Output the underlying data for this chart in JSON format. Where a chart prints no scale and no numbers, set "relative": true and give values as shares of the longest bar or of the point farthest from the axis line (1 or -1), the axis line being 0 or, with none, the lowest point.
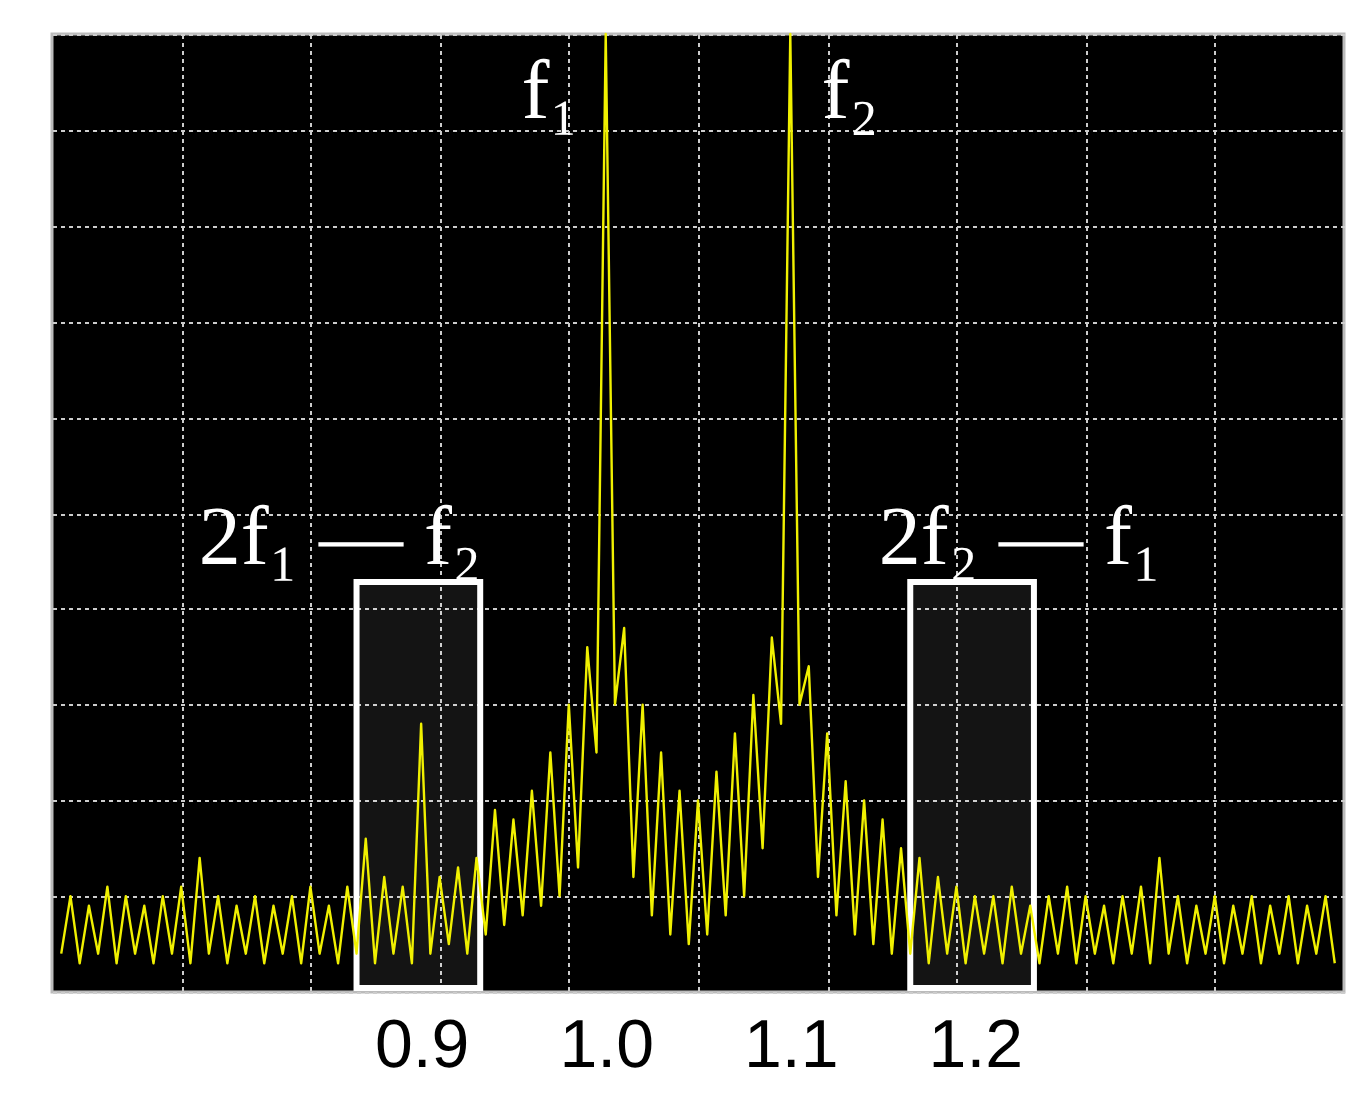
{
  "chart_data": {
    "type": "line",
    "relative": true,
    "grid": true,
    "tick_labels": "x",
    "xlim": [
      0.7,
      1.4
    ],
    "xticks": [
      {
        "value": 0.77,
        "label": null
      },
      {
        "value": 0.84,
        "label": null
      },
      {
        "value": 0.9,
        "label": "0.9"
      },
      {
        "value": 0.91,
        "label": null
      },
      {
        "value": 0.98,
        "label": null
      },
      {
        "value": 1.0,
        "label": "1.0"
      },
      {
        "value": 1.05,
        "label": null
      },
      {
        "value": 1.1,
        "label": "1.1"
      },
      {
        "value": 1.12,
        "label": null
      },
      {
        "value": 1.19,
        "label": null
      },
      {
        "value": 1.2,
        "label": "1.2"
      },
      {
        "value": 1.26,
        "label": null
      },
      {
        "value": 1.33,
        "label": null
      }
    ],
    "x": [
      0.705,
      0.71,
      0.715,
      0.72,
      0.725,
      0.73,
      0.735,
      0.74,
      0.745,
      0.75,
      0.755,
      0.76,
      0.765,
      0.77,
      0.775,
      0.78,
      0.785,
      0.79,
      0.795,
      0.8,
      0.805,
      0.81,
      0.815,
      0.82,
      0.825,
      0.83,
      0.835,
      0.84,
      0.845,
      0.85,
      0.855,
      0.86,
      0.865,
      0.87,
      0.875,
      0.88,
      0.885,
      0.89,
      0.895,
      0.9,
      0.905,
      0.91,
      0.915,
      0.92,
      0.925,
      0.93,
      0.935,
      0.94,
      0.945,
      0.95,
      0.955,
      0.96,
      0.965,
      0.97,
      0.975,
      0.98,
      0.985,
      0.99,
      0.995,
      1.0,
      1.005,
      1.01,
      1.015,
      1.02,
      1.025,
      1.03,
      1.035,
      1.04,
      1.045,
      1.05,
      1.055,
      1.06,
      1.065,
      1.07,
      1.075,
      1.08,
      1.085,
      1.09,
      1.095,
      1.1,
      1.105,
      1.11,
      1.115,
      1.12,
      1.125,
      1.13,
      1.135,
      1.14,
      1.145,
      1.15,
      1.155,
      1.16,
      1.165,
      1.17,
      1.175,
      1.18,
      1.185,
      1.19,
      1.195,
      1.2,
      1.205,
      1.21,
      1.215,
      1.22,
      1.225,
      1.23,
      1.235,
      1.24,
      1.245,
      1.25,
      1.255,
      1.26,
      1.265,
      1.27,
      1.275,
      1.28,
      1.285,
      1.29,
      1.295,
      1.3,
      1.305,
      1.31,
      1.315,
      1.32,
      1.325,
      1.33,
      1.335,
      1.34,
      1.345,
      1.35,
      1.355,
      1.36,
      1.365,
      1.37,
      1.375,
      1.38,
      1.385,
      1.39,
      1.395
    ],
    "series": [
      {
        "color": "#f0f000",
        "values": [
          0.04,
          0.1,
          0.03,
          0.09,
          0.04,
          0.11,
          0.03,
          0.1,
          0.04,
          0.09,
          0.03,
          0.1,
          0.04,
          0.11,
          0.03,
          0.14,
          0.04,
          0.1,
          0.03,
          0.09,
          0.04,
          0.1,
          0.03,
          0.09,
          0.04,
          0.1,
          0.03,
          0.11,
          0.04,
          0.09,
          0.03,
          0.11,
          0.04,
          0.16,
          0.03,
          0.12,
          0.04,
          0.11,
          0.03,
          0.28,
          0.04,
          0.12,
          0.05,
          0.13,
          0.04,
          0.14,
          0.06,
          0.19,
          0.07,
          0.18,
          0.08,
          0.21,
          0.09,
          0.25,
          0.1,
          0.3,
          0.13,
          0.36,
          0.25,
          1.0,
          0.3,
          0.38,
          0.12,
          0.3,
          0.08,
          0.25,
          0.06,
          0.21,
          0.05,
          0.2,
          0.06,
          0.23,
          0.08,
          0.27,
          0.1,
          0.31,
          0.15,
          0.37,
          0.28,
          1.0,
          0.3,
          0.34,
          0.12,
          0.27,
          0.08,
          0.22,
          0.06,
          0.2,
          0.05,
          0.18,
          0.04,
          0.15,
          0.04,
          0.14,
          0.03,
          0.12,
          0.04,
          0.11,
          0.03,
          0.1,
          0.04,
          0.1,
          0.03,
          0.11,
          0.04,
          0.09,
          0.03,
          0.1,
          0.04,
          0.11,
          0.03,
          0.1,
          0.04,
          0.09,
          0.03,
          0.1,
          0.04,
          0.11,
          0.03,
          0.14,
          0.04,
          0.1,
          0.03,
          0.09,
          0.04,
          0.1,
          0.03,
          0.09,
          0.04,
          0.1,
          0.03,
          0.09,
          0.04,
          0.1,
          0.03,
          0.09,
          0.04,
          0.1,
          0.03
        ]
      }
    ],
    "annotations": [
      "f₁",
      "f₂",
      "2f₁ — f₂",
      "2f₂ — f₁"
    ],
    "bands": [
      {
        "axis": "x",
        "from": 0.865,
        "to": 0.932,
        "color": "#ffffff"
      },
      {
        "axis": "x",
        "from": 1.165,
        "to": 1.232,
        "color": "#ffffff"
      }
    ]
  }
}
